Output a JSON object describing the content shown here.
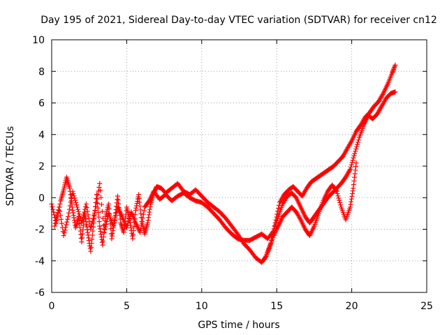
{
  "chart_data": {
    "type": "scatter",
    "title": "Day 195 of 2021, Sidereal Day-to-day VTEC variation (SDTVAR) for receiver cn12",
    "xlabel": "GPS time / hours",
    "ylabel": "SDTVAR / TECUs",
    "xlim": [
      0,
      25
    ],
    "ylim": [
      -6,
      10
    ],
    "xticks": [
      0,
      5,
      10,
      15,
      20,
      25
    ],
    "yticks": [
      -6,
      -4,
      -2,
      0,
      2,
      4,
      6,
      8,
      10
    ],
    "grid": true,
    "marker": "+",
    "series": [
      {
        "name": "trace-a",
        "color": "#ff0000",
        "x": [
          0.0,
          0.3,
          0.6,
          0.8,
          1.0,
          1.2,
          1.4,
          1.6,
          1.8,
          2.0,
          2.2,
          2.4,
          2.6,
          2.8,
          3.0,
          3.2,
          3.4,
          3.6,
          3.8,
          4.0,
          4.2,
          4.4,
          4.6,
          4.8,
          5.0,
          5.2,
          5.4,
          5.6,
          5.8,
          6.0,
          6.2,
          6.4,
          6.6,
          6.8,
          7.0,
          7.3,
          7.6,
          8.0,
          8.4,
          8.8,
          9.2,
          9.6,
          10.0,
          10.4,
          10.8,
          11.2,
          11.6,
          12.0,
          12.4,
          12.8,
          13.2,
          13.6,
          14.0,
          14.3,
          14.6,
          14.9,
          15.2,
          15.5,
          15.8,
          16.1,
          16.4,
          16.7,
          17.0,
          17.3,
          17.6,
          17.9,
          18.2,
          18.5,
          18.8,
          19.1,
          19.4,
          19.7,
          20.0,
          20.3,
          20.6,
          20.9,
          21.2,
          21.5,
          21.8,
          22.1,
          22.4,
          22.7,
          22.9
        ],
        "y": [
          -0.4,
          -1.6,
          -0.2,
          0.5,
          1.3,
          0.6,
          -0.8,
          -1.9,
          -1.2,
          -2.8,
          -1.0,
          -2.2,
          -3.4,
          -1.6,
          0.2,
          -1.8,
          -3.0,
          -1.2,
          -0.4,
          -2.6,
          -1.4,
          0.1,
          -1.6,
          -2.2,
          -0.6,
          -1.4,
          -2.6,
          -0.8,
          0.2,
          -1.5,
          -2.3,
          -1.6,
          -0.4,
          0.3,
          0.7,
          0.6,
          0.3,
          0.6,
          0.9,
          0.4,
          0.2,
          0.5,
          0.1,
          -0.3,
          -0.6,
          -0.9,
          -1.3,
          -1.8,
          -2.3,
          -2.9,
          -3.3,
          -3.8,
          -4.1,
          -3.7,
          -2.9,
          -1.6,
          -0.3,
          0.2,
          0.5,
          0.7,
          0.4,
          0.1,
          0.6,
          1.0,
          1.2,
          1.4,
          1.6,
          1.8,
          2.0,
          2.3,
          2.6,
          3.1,
          3.6,
          4.2,
          4.6,
          5.1,
          5.4,
          5.8,
          6.1,
          6.6,
          7.2,
          7.9,
          8.4
        ]
      },
      {
        "name": "trace-b",
        "color": "#ff0000",
        "x": [
          0.2,
          0.5,
          0.8,
          1.1,
          1.4,
          1.7,
          2.0,
          2.3,
          2.6,
          2.9,
          3.2,
          3.5,
          3.8,
          4.1,
          4.4,
          4.7,
          5.0,
          5.3,
          5.6,
          5.9,
          6.2,
          6.5,
          6.8,
          7.2,
          7.6,
          8.0,
          8.4,
          8.8,
          9.2,
          9.6,
          10.0,
          10.4,
          10.8,
          11.2,
          11.6,
          12.0,
          12.4,
          12.8,
          13.2,
          13.6,
          14.0,
          14.4,
          14.8,
          15.1,
          15.4,
          15.7,
          16.0,
          16.3,
          16.6,
          16.9,
          17.2,
          17.5,
          17.8,
          18.1,
          18.4,
          18.7,
          19.0,
          19.3,
          19.6,
          19.9,
          20.2,
          20.5,
          20.8,
          21.1,
          21.4,
          21.7,
          22.0,
          22.3,
          22.6,
          22.9
        ],
        "y": [
          -1.8,
          -0.6,
          -2.4,
          -1.2,
          0.4,
          -0.6,
          -1.6,
          -0.4,
          -2.0,
          -0.8,
          0.9,
          -2.2,
          -1.0,
          -1.8,
          -0.6,
          -1.2,
          -1.9,
          -0.9,
          -1.6,
          -2.2,
          -0.6,
          -0.2,
          0.4,
          -0.1,
          0.2,
          -0.2,
          0.1,
          0.3,
          0.0,
          -0.2,
          -0.3,
          -0.6,
          -1.0,
          -1.4,
          -1.9,
          -2.3,
          -2.6,
          -2.7,
          -2.7,
          -2.5,
          -2.3,
          -2.6,
          -2.1,
          -1.2,
          -0.4,
          0.1,
          0.3,
          0.0,
          -0.6,
          -1.2,
          -1.6,
          -1.2,
          -0.8,
          -0.4,
          0.0,
          0.3,
          0.6,
          0.9,
          1.3,
          1.8,
          2.8,
          3.8,
          4.6,
          5.2,
          5.0,
          5.3,
          5.8,
          6.3,
          6.6,
          6.7
        ]
      },
      {
        "name": "trace-c",
        "color": "#ff0000",
        "x": [
          14.2,
          14.5,
          14.8,
          15.1,
          15.4,
          15.7,
          16.0,
          16.3,
          16.6,
          16.9,
          17.2,
          17.5,
          17.8,
          18.1,
          18.4,
          18.7,
          19.0,
          19.3,
          19.6,
          19.9,
          20.1,
          20.3
        ],
        "y": [
          -3.9,
          -3.2,
          -2.4,
          -1.8,
          -1.2,
          -0.9,
          -0.6,
          -0.9,
          -1.4,
          -2.0,
          -2.4,
          -1.8,
          -1.0,
          -0.2,
          0.4,
          0.8,
          0.4,
          -0.6,
          -1.4,
          -0.6,
          0.6,
          2.2
        ]
      }
    ]
  }
}
